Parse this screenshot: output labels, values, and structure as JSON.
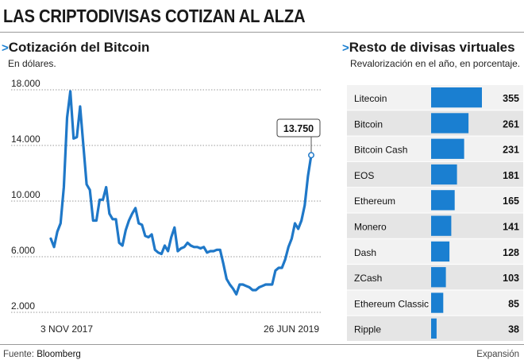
{
  "header": {
    "title": "LAS CRIPTODIVISAS COTIZAN AL ALZA"
  },
  "left": {
    "title": "Cotización del Bitcoin",
    "subtitle": "En dólares."
  },
  "right": {
    "title": "Resto de divisas virtuales",
    "subtitle": "Revalorización en el año, en porcentaje."
  },
  "footer": {
    "source_label": "Fuente:",
    "source": "Bloomberg",
    "brand": "Expansión"
  },
  "colors": {
    "accent": "#1a7fd1",
    "line": "#1f78c8",
    "bar": "#1a7fd1",
    "row_a": "#f2f2f2",
    "row_b": "#e5e5e5"
  },
  "chart_data": [
    {
      "type": "line",
      "x_start_label": "3 NOV 2017",
      "x_end_label": "26 JUN 2019",
      "yticks": [
        "18.000",
        "14.000",
        "10.000",
        "6.000",
        "2.000"
      ],
      "ytick_values": [
        18000,
        14000,
        10000,
        6000,
        2000
      ],
      "ylim": [
        2000,
        18000
      ],
      "series": [
        {
          "values": [
            7300,
            6700,
            7800,
            8400,
            11000,
            16000,
            17900,
            14500,
            14600,
            16800,
            14000,
            11200,
            10800,
            8600,
            8600,
            10100,
            10100,
            11000,
            9100,
            8700,
            8700,
            7000,
            6800,
            7900,
            8600,
            9100,
            9500,
            8400,
            8300,
            7500,
            7400,
            7600,
            6500,
            6300,
            6200,
            6800,
            6400,
            7400,
            8100,
            6400,
            6600,
            6700,
            7000,
            6800,
            6700,
            6700,
            6600,
            6700,
            6300,
            6400,
            6400,
            6500,
            6500,
            5500,
            4400,
            4000,
            3700,
            3300,
            4000,
            4000,
            3900,
            3800,
            3600,
            3600,
            3800,
            3900,
            4000,
            4000,
            4000,
            5000,
            5200,
            5200,
            5800,
            6700,
            7300,
            8400,
            8000,
            8600,
            9700,
            11800,
            13300
          ]
        }
      ],
      "annotation": {
        "label": "13.750",
        "value": 13300
      }
    },
    {
      "type": "bar",
      "orientation": "horizontal",
      "categories": [
        "Litecoin",
        "Bitcoin",
        "Bitcoin Cash",
        "EOS",
        "Ethereum",
        "Monero",
        "Dash",
        "ZCash",
        "Ethereum Classic",
        "Ripple"
      ],
      "values": [
        355,
        261,
        231,
        181,
        165,
        141,
        128,
        103,
        85,
        38
      ]
    }
  ]
}
